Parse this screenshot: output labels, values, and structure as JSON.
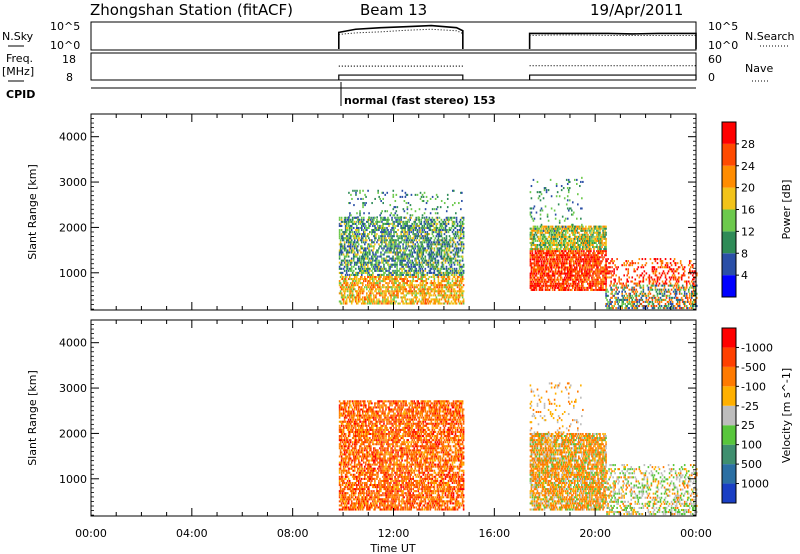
{
  "header": {
    "station": "Zhongshan Station (fitACF)",
    "beam": "Beam 13",
    "date": "19/Apr/2011"
  },
  "mode_text": "normal (fast stereo) 153",
  "chart_data": [
    {
      "type": "line",
      "name": "noise-panel",
      "ylabel_left": "N.Sky",
      "ylabel_right": "N.Search",
      "left_ticks": [
        "10^5",
        "10^0"
      ],
      "right_ticks": [
        "10^5",
        "10^0"
      ],
      "segments": [
        {
          "x": [
            9.83,
            10.5,
            11.5,
            12.5,
            13.5,
            14.5,
            14.75
          ],
          "sky": [
            3.2,
            3.8,
            4.1,
            4.3,
            4.5,
            4.1,
            3.5
          ],
          "search": [
            2.8,
            3.1,
            3.3,
            3.6,
            3.8,
            3.5,
            3.0
          ]
        },
        {
          "x": [
            17.4,
            18.5,
            19.5,
            20.5,
            21.5,
            22.5,
            23.5,
            24.0
          ],
          "sky": [
            3.0,
            3.0,
            3.0,
            3.0,
            2.9,
            3.0,
            3.0,
            3.0
          ],
          "search": [
            2.6,
            2.7,
            2.7,
            2.6,
            2.6,
            2.6,
            2.6,
            2.6
          ]
        }
      ]
    },
    {
      "type": "line",
      "name": "freq-panel",
      "ylabel_left_top": "Freq.",
      "ylabel_left_bottom": "[MHz]",
      "ylabel_right": "Nave",
      "left_ticks": [
        "18",
        "8"
      ],
      "right_ticks": [
        "60",
        "0"
      ],
      "freq_ylim": [
        8,
        18
      ],
      "segments": [
        {
          "x_start": 9.83,
          "x_end": 14.75,
          "freq": 9.9,
          "nave": 32
        },
        {
          "x_start": 17.4,
          "x_end": 24.0,
          "freq": 9.9,
          "nave": 33
        }
      ]
    },
    {
      "type": "heatmap",
      "name": "power-panel",
      "ylabel": "Slant Range [km]",
      "ylim": [
        180,
        4500
      ],
      "yticks": [
        1000,
        2000,
        3000,
        4000
      ],
      "colorbar_label": "Power [dB]",
      "colorbar_ticks": [
        "4",
        "8",
        "12",
        "16",
        "20",
        "24",
        "28"
      ],
      "colorbar_colors": [
        "#0000ff",
        "#2a4fa7",
        "#2e8b57",
        "#6cc94c",
        "#f2c31a",
        "#ff8c00",
        "#ff4a00",
        "#ff0000"
      ],
      "blocks": [
        {
          "t0": 9.83,
          "t1": 14.75,
          "r0": 300,
          "r1": 2200,
          "kind": "p1"
        },
        {
          "t0": 10.2,
          "t1": 14.7,
          "r0": 2200,
          "r1": 2800,
          "kind": "sparse"
        },
        {
          "t0": 17.4,
          "t1": 20.4,
          "r0": 600,
          "r1": 2000,
          "kind": "p2"
        },
        {
          "t0": 20.4,
          "t1": 24.0,
          "r0": 200,
          "r1": 1300,
          "kind": "p3"
        },
        {
          "t0": 17.4,
          "t1": 19.5,
          "r0": 1900,
          "r1": 3100,
          "kind": "sparse"
        }
      ]
    },
    {
      "type": "heatmap",
      "name": "velocity-panel",
      "ylabel": "Slant Range [km]",
      "ylim": [
        180,
        4500
      ],
      "yticks": [
        1000,
        2000,
        3000,
        4000
      ],
      "colorbar_label": "Velocity [m s^-1]",
      "colorbar_ticks": [
        "1000",
        "500",
        "100",
        "25",
        "-25",
        "-100",
        "-500",
        "-1000"
      ],
      "colorbar_colors": [
        "#1a3fc4",
        "#2b6fa3",
        "#3f8f6f",
        "#58c63c",
        "#bdbdbd",
        "#ffb000",
        "#ff7a00",
        "#ff4000",
        "#ff0000"
      ],
      "blocks": [
        {
          "t0": 9.83,
          "t1": 14.75,
          "r0": 300,
          "r1": 2700,
          "kind": "v1"
        },
        {
          "t0": 17.4,
          "t1": 20.4,
          "r0": 300,
          "r1": 2000,
          "kind": "v2"
        },
        {
          "t0": 20.4,
          "t1": 24.0,
          "r0": 200,
          "r1": 1300,
          "kind": "v3"
        },
        {
          "t0": 17.4,
          "t1": 19.5,
          "r0": 2000,
          "r1": 3100,
          "kind": "vsparse"
        }
      ]
    }
  ],
  "x_axis": {
    "label": "Time UT",
    "range": [
      0,
      24
    ],
    "tick_labels": [
      "00:00",
      "04:00",
      "08:00",
      "12:00",
      "16:00",
      "20:00",
      "00:00"
    ]
  },
  "cpid_label": "CPID"
}
